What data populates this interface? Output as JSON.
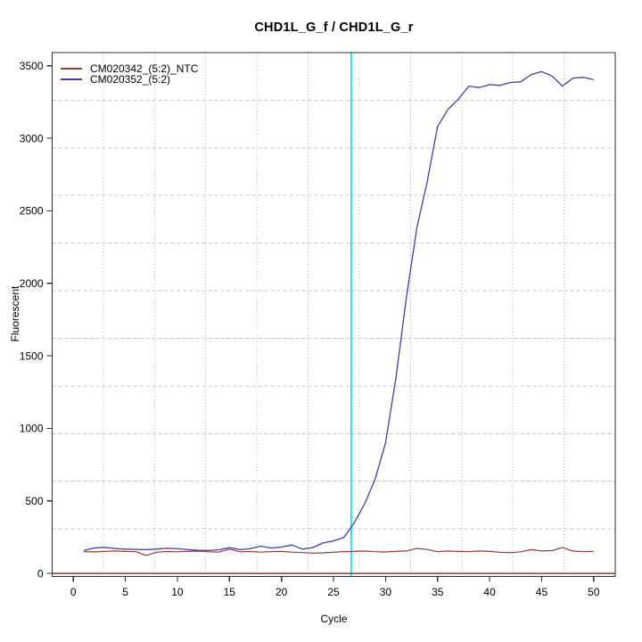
{
  "chart_data": {
    "type": "line",
    "title": "CHD1L_G_f / CHD1L_G_r",
    "xlabel": "Cycle",
    "ylabel": "Fluorescent",
    "xlim": [
      -2.03,
      52.07
    ],
    "ylim": [
      -21,
      3591
    ],
    "xticks": [
      0,
      5,
      10,
      15,
      20,
      25,
      30,
      35,
      40,
      45,
      50
    ],
    "yticks": [
      0,
      500,
      1000,
      1500,
      2000,
      2500,
      3000,
      3500
    ],
    "grid": {
      "nx": 11,
      "ny": 11,
      "v_color": "#ababab",
      "h_color": "#c6c6c6"
    },
    "legend_position": "top-left",
    "threshold_vline": {
      "x": 26.7,
      "color": "#00e7e7"
    },
    "zero_hline": {
      "y": 0,
      "color": "#8b2626"
    },
    "x": [
      1,
      2,
      3,
      4,
      5,
      6,
      7,
      8,
      9,
      10,
      11,
      12,
      13,
      14,
      15,
      16,
      17,
      18,
      19,
      20,
      21,
      22,
      23,
      24,
      25,
      26,
      27,
      28,
      29,
      30,
      31,
      32,
      33,
      34,
      35,
      36,
      37,
      38,
      39,
      40,
      41,
      42,
      43,
      44,
      45,
      46,
      47,
      48,
      49,
      50
    ],
    "series": [
      {
        "name": "CM020342_(5:2)_NTC",
        "color": "#9b3838",
        "values": [
          150,
          148,
          152,
          155,
          152,
          150,
          124,
          146,
          151,
          149,
          152,
          154,
          149,
          147,
          168,
          149,
          151,
          147,
          150,
          152,
          147,
          144,
          140,
          142,
          146,
          150,
          152,
          154,
          150,
          148,
          152,
          155,
          172,
          165,
          150,
          154,
          152,
          150,
          155,
          152,
          146,
          143,
          149,
          164,
          155,
          157,
          178,
          154,
          150,
          152
        ]
      },
      {
        "name": "CM020352_(5:2)",
        "color": "#3f3faa",
        "values": [
          158,
          176,
          180,
          172,
          168,
          166,
          164,
          168,
          173,
          170,
          164,
          160,
          158,
          163,
          178,
          164,
          170,
          188,
          175,
          182,
          196,
          168,
          178,
          210,
          224,
          248,
          350,
          480,
          650,
          900,
          1350,
          1900,
          2380,
          2700,
          3080,
          3200,
          3270,
          3360,
          3350,
          3370,
          3365,
          3385,
          3390,
          3440,
          3460,
          3430,
          3360,
          3415,
          3420,
          3405
        ]
      }
    ]
  }
}
